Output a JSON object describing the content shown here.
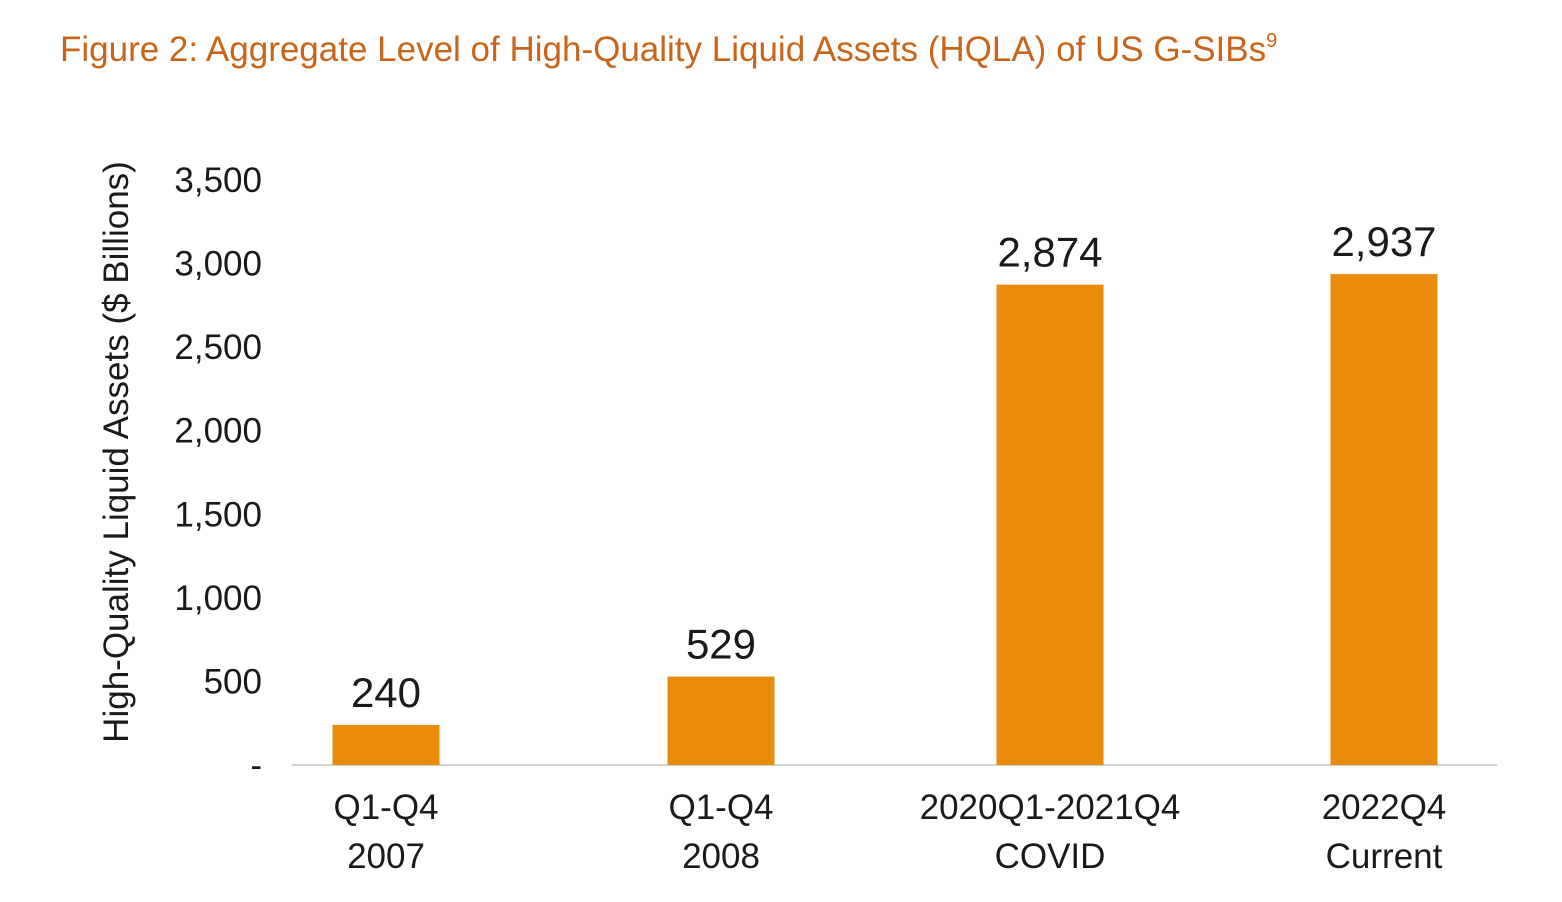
{
  "colors": {
    "title": "#c8651b",
    "bar": "#e98b0c",
    "text": "#1a1a1a",
    "axis": "#d0d0d0"
  },
  "chart_data": {
    "type": "bar",
    "title": "Figure 2: Aggregate Level of High-Quality Liquid Assets (HQLA) of US G-SIBs",
    "title_footnote": "9",
    "ylabel": "High-Quality Liquid Assets ($ Billions)",
    "xlabel": "",
    "ylim": [
      0,
      3500
    ],
    "yticks": [
      0,
      500,
      1000,
      1500,
      2000,
      2500,
      3000,
      3500
    ],
    "ytick_labels": [
      "-",
      "500",
      "1,000",
      "1,500",
      "2,000",
      "2,500",
      "3,000",
      "3,500"
    ],
    "grid": false,
    "legend": "none",
    "categories": [
      [
        "Q1-Q4",
        "2007"
      ],
      [
        "Q1-Q4",
        "2008"
      ],
      [
        "2020Q1-2021Q4",
        "COVID"
      ],
      [
        "2022Q4",
        "Current"
      ]
    ],
    "values": [
      240,
      529,
      2874,
      2937
    ],
    "data_labels": [
      "240",
      "529",
      "2,874",
      "2,937"
    ]
  }
}
